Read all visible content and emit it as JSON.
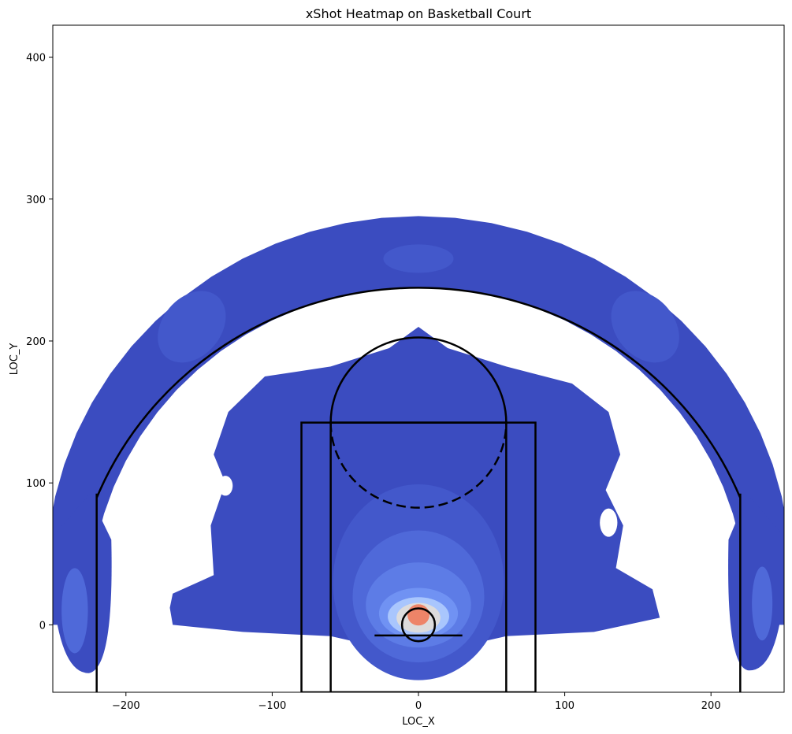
{
  "chart_data": {
    "type": "heatmap",
    "title": "xShot Heatmap on Basketball Court",
    "xlabel": "LOC_X",
    "ylabel": "LOC_Y",
    "xlim": [
      -250,
      250
    ],
    "ylim": [
      -47.5,
      422.5
    ],
    "xticks": [
      -200,
      -100,
      0,
      100,
      200
    ],
    "yticks": [
      0,
      100,
      200,
      300,
      400
    ],
    "grid": false,
    "colormap": "coolwarm",
    "level_colors": [
      "#3b4cc0",
      "#4358cb",
      "#4f69d9",
      "#5d7ce6",
      "#7092f3",
      "#8caff9",
      "#a9c6fd",
      "#dddcdc",
      "#f2cbb7",
      "#ee8468"
    ],
    "court_lines": {
      "color": "#000000",
      "hoop": {
        "center": [
          0,
          0
        ],
        "radius": 7.5
      },
      "backboard": {
        "x": [
          -30,
          30
        ],
        "y": -7.5
      },
      "paint_outer": {
        "x": [
          -80,
          80
        ],
        "y": [
          -47.5,
          142.5
        ]
      },
      "paint_inner": {
        "x": [
          -60,
          60
        ],
        "y": [
          -47.5,
          142.5
        ]
      },
      "free_throw_circle": {
        "center": [
          0,
          142.5
        ],
        "radius": 60
      },
      "three_point_corners": {
        "x": [
          -220,
          220
        ],
        "y": [
          -47.5,
          92.5
        ]
      },
      "three_point_arc": {
        "center": [
          0,
          0
        ],
        "radius": 237.5
      }
    }
  }
}
